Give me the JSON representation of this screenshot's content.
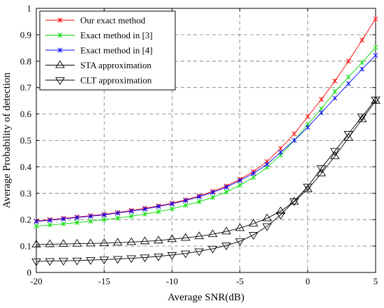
{
  "chart_data": {
    "type": "line",
    "title": "",
    "xlabel": "Average SNR(dB)",
    "ylabel": "Average Probability of detection",
    "xlim": [
      -20,
      5
    ],
    "ylim": [
      0,
      1
    ],
    "xticks": [
      -20,
      -15,
      -10,
      -5,
      0,
      5
    ],
    "yticks": [
      0,
      0.1,
      0.2,
      0.3,
      0.4,
      0.5,
      0.6,
      0.7,
      0.8,
      0.9,
      1
    ],
    "xtick_labels": [
      "-20",
      "-15",
      "-10",
      "-5",
      "0",
      "5"
    ],
    "ytick_labels": [
      "0",
      "0.1",
      "0.2",
      "0.3",
      "0.4",
      "0.5",
      "0.6",
      "0.7",
      "0.8",
      "0.9",
      "1"
    ],
    "grid": true,
    "legend_position": "top-left",
    "x": [
      -20,
      -19,
      -18,
      -17,
      -16,
      -15,
      -14,
      -13,
      -12,
      -11,
      -10,
      -9,
      -8,
      -7,
      -6,
      -5,
      -4,
      -3,
      -2,
      -1,
      0,
      1,
      2,
      3,
      4,
      5
    ],
    "series": [
      {
        "name": "Our exact method",
        "color": "#ff0000",
        "marker": "x-star",
        "x": [
          -20,
          -19,
          -18,
          -17,
          -16,
          -15,
          -14,
          -13,
          -12,
          -11,
          -10,
          -9,
          -8,
          -7,
          -6,
          -5,
          -4,
          -3,
          -2,
          -1,
          0,
          1,
          2,
          3,
          4,
          5
        ],
        "values": [
          0.195,
          0.2,
          0.205,
          0.21,
          0.215,
          0.22,
          0.227,
          0.235,
          0.243,
          0.252,
          0.262,
          0.275,
          0.29,
          0.307,
          0.327,
          0.353,
          0.382,
          0.42,
          0.47,
          0.525,
          0.59,
          0.655,
          0.725,
          0.8,
          0.88,
          0.96
        ]
      },
      {
        "name": "Exact method in [3]",
        "color": "#00dd00",
        "marker": "x-star",
        "x": [
          -20,
          -19,
          -18,
          -17,
          -16,
          -15,
          -14,
          -13,
          -12,
          -11,
          -10,
          -9,
          -8,
          -7,
          -6,
          -5,
          -4,
          -3,
          -2,
          -1,
          0,
          1,
          2,
          3,
          4,
          5
        ],
        "values": [
          0.175,
          0.18,
          0.184,
          0.189,
          0.194,
          0.2,
          0.206,
          0.213,
          0.221,
          0.23,
          0.241,
          0.254,
          0.268,
          0.284,
          0.305,
          0.33,
          0.36,
          0.398,
          0.445,
          0.5,
          0.56,
          0.62,
          0.685,
          0.74,
          0.795,
          0.852
        ]
      },
      {
        "name": "Exact method in [4]",
        "color": "#0000ff",
        "marker": "x-star",
        "x": [
          -20,
          -19,
          -18,
          -17,
          -16,
          -15,
          -14,
          -13,
          -12,
          -11,
          -10,
          -9,
          -8,
          -7,
          -6,
          -5,
          -4,
          -3,
          -2,
          -1,
          0,
          1,
          2,
          3,
          4,
          5
        ],
        "values": [
          0.193,
          0.198,
          0.203,
          0.208,
          0.213,
          0.218,
          0.225,
          0.232,
          0.24,
          0.25,
          0.26,
          0.272,
          0.287,
          0.303,
          0.323,
          0.348,
          0.375,
          0.41,
          0.455,
          0.5,
          0.55,
          0.605,
          0.66,
          0.715,
          0.77,
          0.822
        ]
      },
      {
        "name": "STA approximation",
        "color": "#000000",
        "marker": "triangle-up",
        "x": [
          -20,
          -19,
          -18,
          -17,
          -16,
          -15,
          -14,
          -13,
          -12,
          -11,
          -10,
          -9,
          -8,
          -7,
          -6,
          -5,
          -4,
          -3,
          -2,
          -1,
          0,
          1,
          2,
          3,
          4,
          5
        ],
        "values": [
          0.106,
          0.107,
          0.108,
          0.109,
          0.11,
          0.111,
          0.113,
          0.115,
          0.118,
          0.121,
          0.126,
          0.131,
          0.137,
          0.145,
          0.155,
          0.168,
          0.185,
          0.205,
          0.232,
          0.268,
          0.315,
          0.375,
          0.44,
          0.51,
          0.58,
          0.65
        ]
      },
      {
        "name": "CLT approximation",
        "color": "#000000",
        "marker": "triangle-down",
        "x": [
          -20,
          -19,
          -18,
          -17,
          -16,
          -15,
          -14,
          -13,
          -12,
          -11,
          -10,
          -9,
          -8,
          -7,
          -6,
          -5,
          -4,
          -3,
          -2,
          -1,
          0,
          1,
          2,
          3,
          4,
          5
        ],
        "values": [
          0.042,
          0.043,
          0.044,
          0.045,
          0.047,
          0.049,
          0.051,
          0.054,
          0.057,
          0.061,
          0.066,
          0.072,
          0.08,
          0.09,
          0.102,
          0.118,
          0.142,
          0.175,
          0.218,
          0.27,
          0.325,
          0.395,
          0.46,
          0.525,
          0.59,
          0.655
        ]
      }
    ]
  }
}
